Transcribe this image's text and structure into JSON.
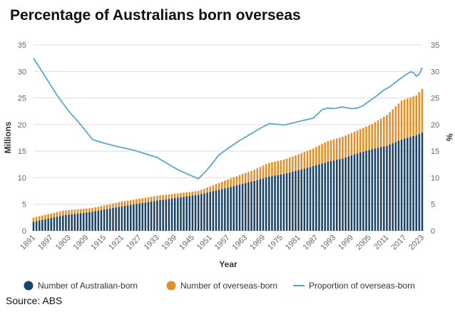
{
  "chart_data": {
    "type": "bar",
    "title": "Percentage of Australians born overseas",
    "xlabel": "Year",
    "ylabel": "Millions",
    "y2label": "%",
    "ylim": [
      0,
      35
    ],
    "y2lim": [
      0,
      35
    ],
    "yticks": [
      0,
      5,
      10,
      15,
      20,
      25,
      30,
      35
    ],
    "x_tick_labels": [
      "1891",
      "1897",
      "1903",
      "1909",
      "1915",
      "1921",
      "1927",
      "1933",
      "1939",
      "1945",
      "1951",
      "1957",
      "1963",
      "1969",
      "1975",
      "1981",
      "1987",
      "1993",
      "1999",
      "2005",
      "2011",
      "2017",
      "2023"
    ],
    "x_range": [
      1891,
      2023
    ],
    "stacked": true,
    "grid": true,
    "legend_position": "bottom",
    "colors": {
      "australian_born": "#1d4466",
      "overseas_born": "#e08f2a",
      "proportion": "#5aa7c8",
      "grid": "#dddddd"
    },
    "series": [
      {
        "name": "Number of Australian-born",
        "kind": "bar",
        "points": [
          [
            1891,
            1.7
          ],
          [
            1901,
            2.9
          ],
          [
            1911,
            3.6
          ],
          [
            1921,
            4.6
          ],
          [
            1933,
            5.7
          ],
          [
            1947,
            6.8
          ],
          [
            1954,
            7.7
          ],
          [
            1961,
            8.7
          ],
          [
            1966,
            9.4
          ],
          [
            1971,
            10.2
          ],
          [
            1976,
            10.7
          ],
          [
            1981,
            11.4
          ],
          [
            1986,
            12.2
          ],
          [
            1991,
            13.0
          ],
          [
            1996,
            13.6
          ],
          [
            2001,
            14.6
          ],
          [
            2006,
            15.4
          ],
          [
            2011,
            16.0
          ],
          [
            2016,
            17.2
          ],
          [
            2021,
            18.0
          ],
          [
            2023,
            18.5
          ]
        ]
      },
      {
        "name": "Number of overseas-born",
        "kind": "bar",
        "points": [
          [
            1891,
            0.8
          ],
          [
            1901,
            0.9
          ],
          [
            1911,
            0.7
          ],
          [
            1921,
            0.9
          ],
          [
            1933,
            0.9
          ],
          [
            1947,
            0.7
          ],
          [
            1954,
            1.3
          ],
          [
            1961,
            1.8
          ],
          [
            1966,
            2.1
          ],
          [
            1971,
            2.6
          ],
          [
            1976,
            2.7
          ],
          [
            1981,
            3.0
          ],
          [
            1986,
            3.3
          ],
          [
            1991,
            3.9
          ],
          [
            1996,
            4.1
          ],
          [
            2001,
            4.3
          ],
          [
            2006,
            4.7
          ],
          [
            2011,
            5.8
          ],
          [
            2016,
            7.3
          ],
          [
            2021,
            7.5
          ],
          [
            2023,
            8.2
          ]
        ]
      },
      {
        "name": "Proportion of overseas-born",
        "kind": "line",
        "points": [
          [
            1891,
            32.5
          ],
          [
            1895,
            29
          ],
          [
            1899,
            25.5
          ],
          [
            1903,
            22.5
          ],
          [
            1907,
            20
          ],
          [
            1911,
            17.2
          ],
          [
            1915,
            16.5
          ],
          [
            1920,
            15.8
          ],
          [
            1925,
            15.2
          ],
          [
            1929,
            14.5
          ],
          [
            1933,
            13.8
          ],
          [
            1936,
            12.8
          ],
          [
            1940,
            11.5
          ],
          [
            1944,
            10.5
          ],
          [
            1947,
            9.8
          ],
          [
            1950,
            11.5
          ],
          [
            1954,
            14.3
          ],
          [
            1957,
            15.5
          ],
          [
            1961,
            17
          ],
          [
            1965,
            18.3
          ],
          [
            1968,
            19.3
          ],
          [
            1971,
            20.2
          ],
          [
            1973,
            20.1
          ],
          [
            1976,
            19.9
          ],
          [
            1979,
            20.3
          ],
          [
            1982,
            20.7
          ],
          [
            1986,
            21.2
          ],
          [
            1989,
            22.8
          ],
          [
            1991,
            23.1
          ],
          [
            1993,
            23
          ],
          [
            1996,
            23.3
          ],
          [
            1999,
            23
          ],
          [
            2001,
            23.1
          ],
          [
            2003,
            23.6
          ],
          [
            2006,
            24.8
          ],
          [
            2008,
            25.6
          ],
          [
            2010,
            26.5
          ],
          [
            2012,
            27.1
          ],
          [
            2014,
            28
          ],
          [
            2017,
            29.2
          ],
          [
            2019,
            29.9
          ],
          [
            2020,
            29.8
          ],
          [
            2021,
            29.1
          ],
          [
            2022,
            29.5
          ],
          [
            2023,
            30.7
          ]
        ]
      }
    ]
  }
}
